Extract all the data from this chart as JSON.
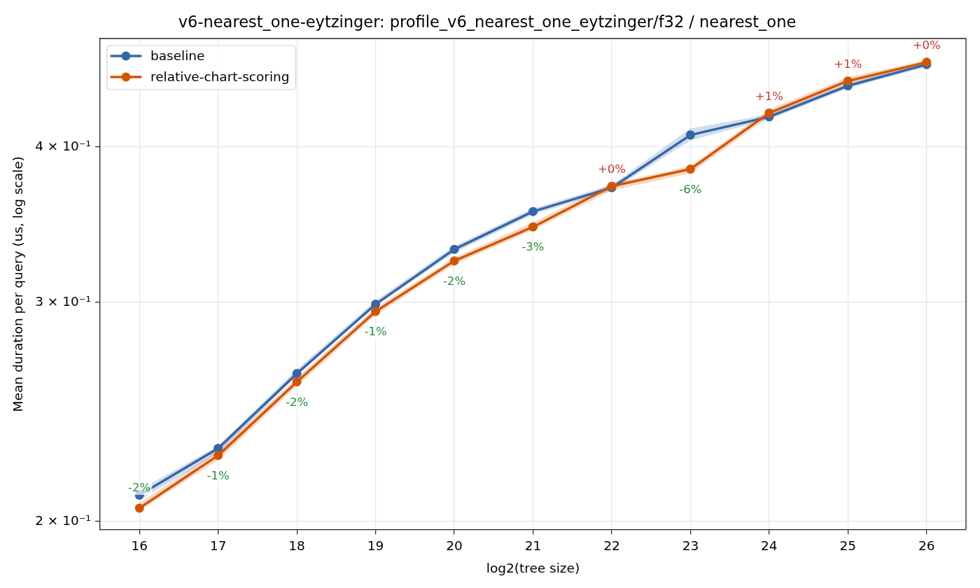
{
  "chart_data": {
    "type": "line",
    "title": "v6-nearest_one-eytzinger: profile_v6_nearest_one_eytzinger/f32 / nearest_one",
    "xlabel": "log2(tree size)",
    "ylabel": "Mean duration per query (us, log scale)",
    "x": [
      16,
      17,
      18,
      19,
      20,
      21,
      22,
      23,
      24,
      25,
      26
    ],
    "series": [
      {
        "name": "baseline",
        "color": "#3366aa",
        "values": [
          0.21,
          0.229,
          0.263,
          0.299,
          0.331,
          0.355,
          0.371,
          0.409,
          0.423,
          0.448,
          0.466
        ],
        "lower": [
          0.208,
          0.227,
          0.262,
          0.298,
          0.329,
          0.353,
          0.369,
          0.405,
          0.421,
          0.446,
          0.464
        ],
        "upper": [
          0.212,
          0.23,
          0.265,
          0.301,
          0.333,
          0.357,
          0.373,
          0.414,
          0.425,
          0.45,
          0.468
        ]
      },
      {
        "name": "relative-chart-scoring",
        "color": "#d45500",
        "values": [
          0.205,
          0.226,
          0.259,
          0.295,
          0.324,
          0.345,
          0.372,
          0.384,
          0.426,
          0.452,
          0.468
        ],
        "lower": [
          0.204,
          0.224,
          0.257,
          0.293,
          0.322,
          0.343,
          0.369,
          0.381,
          0.423,
          0.449,
          0.465
        ],
        "upper": [
          0.207,
          0.228,
          0.261,
          0.297,
          0.326,
          0.348,
          0.374,
          0.386,
          0.429,
          0.455,
          0.47
        ]
      }
    ],
    "xlim": [
      15.5,
      26.5
    ],
    "xticks": [
      16,
      17,
      18,
      19,
      20,
      21,
      22,
      23,
      24,
      25,
      26
    ],
    "ylim": [
      0.197,
      0.489
    ],
    "yticks": [
      {
        "value": 0.2,
        "label": "2 × 10⁻¹"
      },
      {
        "value": 0.3,
        "label": "3 × 10⁻¹"
      },
      {
        "value": 0.4,
        "label": "4 × 10⁻¹"
      }
    ],
    "log": true,
    "grid": true,
    "legend": "top left",
    "marker": "circle",
    "annotations": [
      {
        "text": "-2%",
        "x": 16,
        "y": 0.205
      },
      {
        "text": "-1%",
        "x": 17,
        "y": 0.226
      },
      {
        "text": "-2%",
        "x": 18,
        "y": 0.259
      },
      {
        "text": "-1%",
        "x": 19,
        "y": 0.295
      },
      {
        "text": "-2%",
        "x": 20,
        "y": 0.324
      },
      {
        "text": "-3%",
        "x": 21,
        "y": 0.345
      },
      {
        "text": "+0%",
        "x": 22,
        "y": 0.372
      },
      {
        "text": "-6%",
        "x": 23,
        "y": 0.384
      },
      {
        "text": "+1%",
        "x": 24,
        "y": 0.426
      },
      {
        "text": "+1%",
        "x": 25,
        "y": 0.452
      },
      {
        "text": "+0%",
        "x": 26,
        "y": 0.468
      }
    ]
  }
}
